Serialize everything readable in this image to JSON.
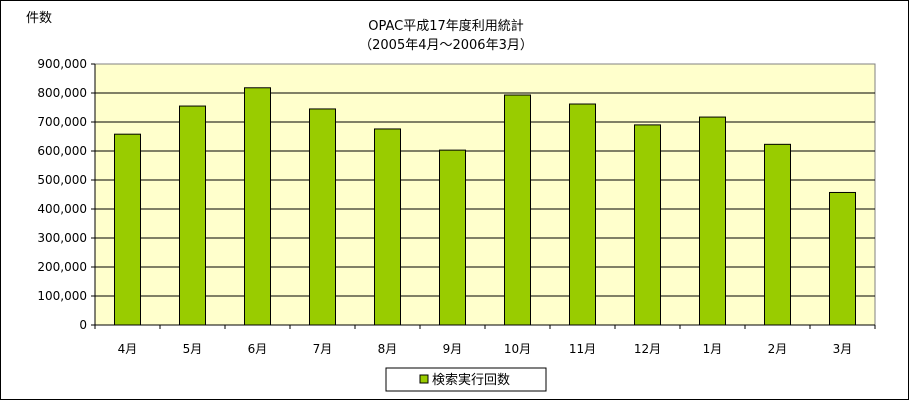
{
  "chart_data": {
    "type": "bar",
    "title": "OPAC平成17年度利用統計",
    "subtitle": "（2005年4月～2006年3月）",
    "ylabel": "件数",
    "xlabel": "",
    "categories": [
      "4月",
      "5月",
      "6月",
      "7月",
      "8月",
      "9月",
      "10月",
      "11月",
      "12月",
      "1月",
      "2月",
      "3月"
    ],
    "series": [
      {
        "name": "検索実行回数",
        "values": [
          658000,
          755000,
          818000,
          745000,
          676000,
          603000,
          793000,
          762000,
          690000,
          717000,
          623000,
          457000
        ]
      }
    ],
    "ylim": [
      0,
      900000
    ],
    "yticks": [
      "0",
      "100,000",
      "200,000",
      "300,000",
      "400,000",
      "500,000",
      "600,000",
      "700,000",
      "800,000",
      "900,000"
    ],
    "grid": true,
    "legend_position": "bottom",
    "colors": {
      "bar": "#99cc00",
      "bar_edge": "#000000",
      "plot_background": "#ffffcc",
      "gridline": "#000000"
    }
  }
}
